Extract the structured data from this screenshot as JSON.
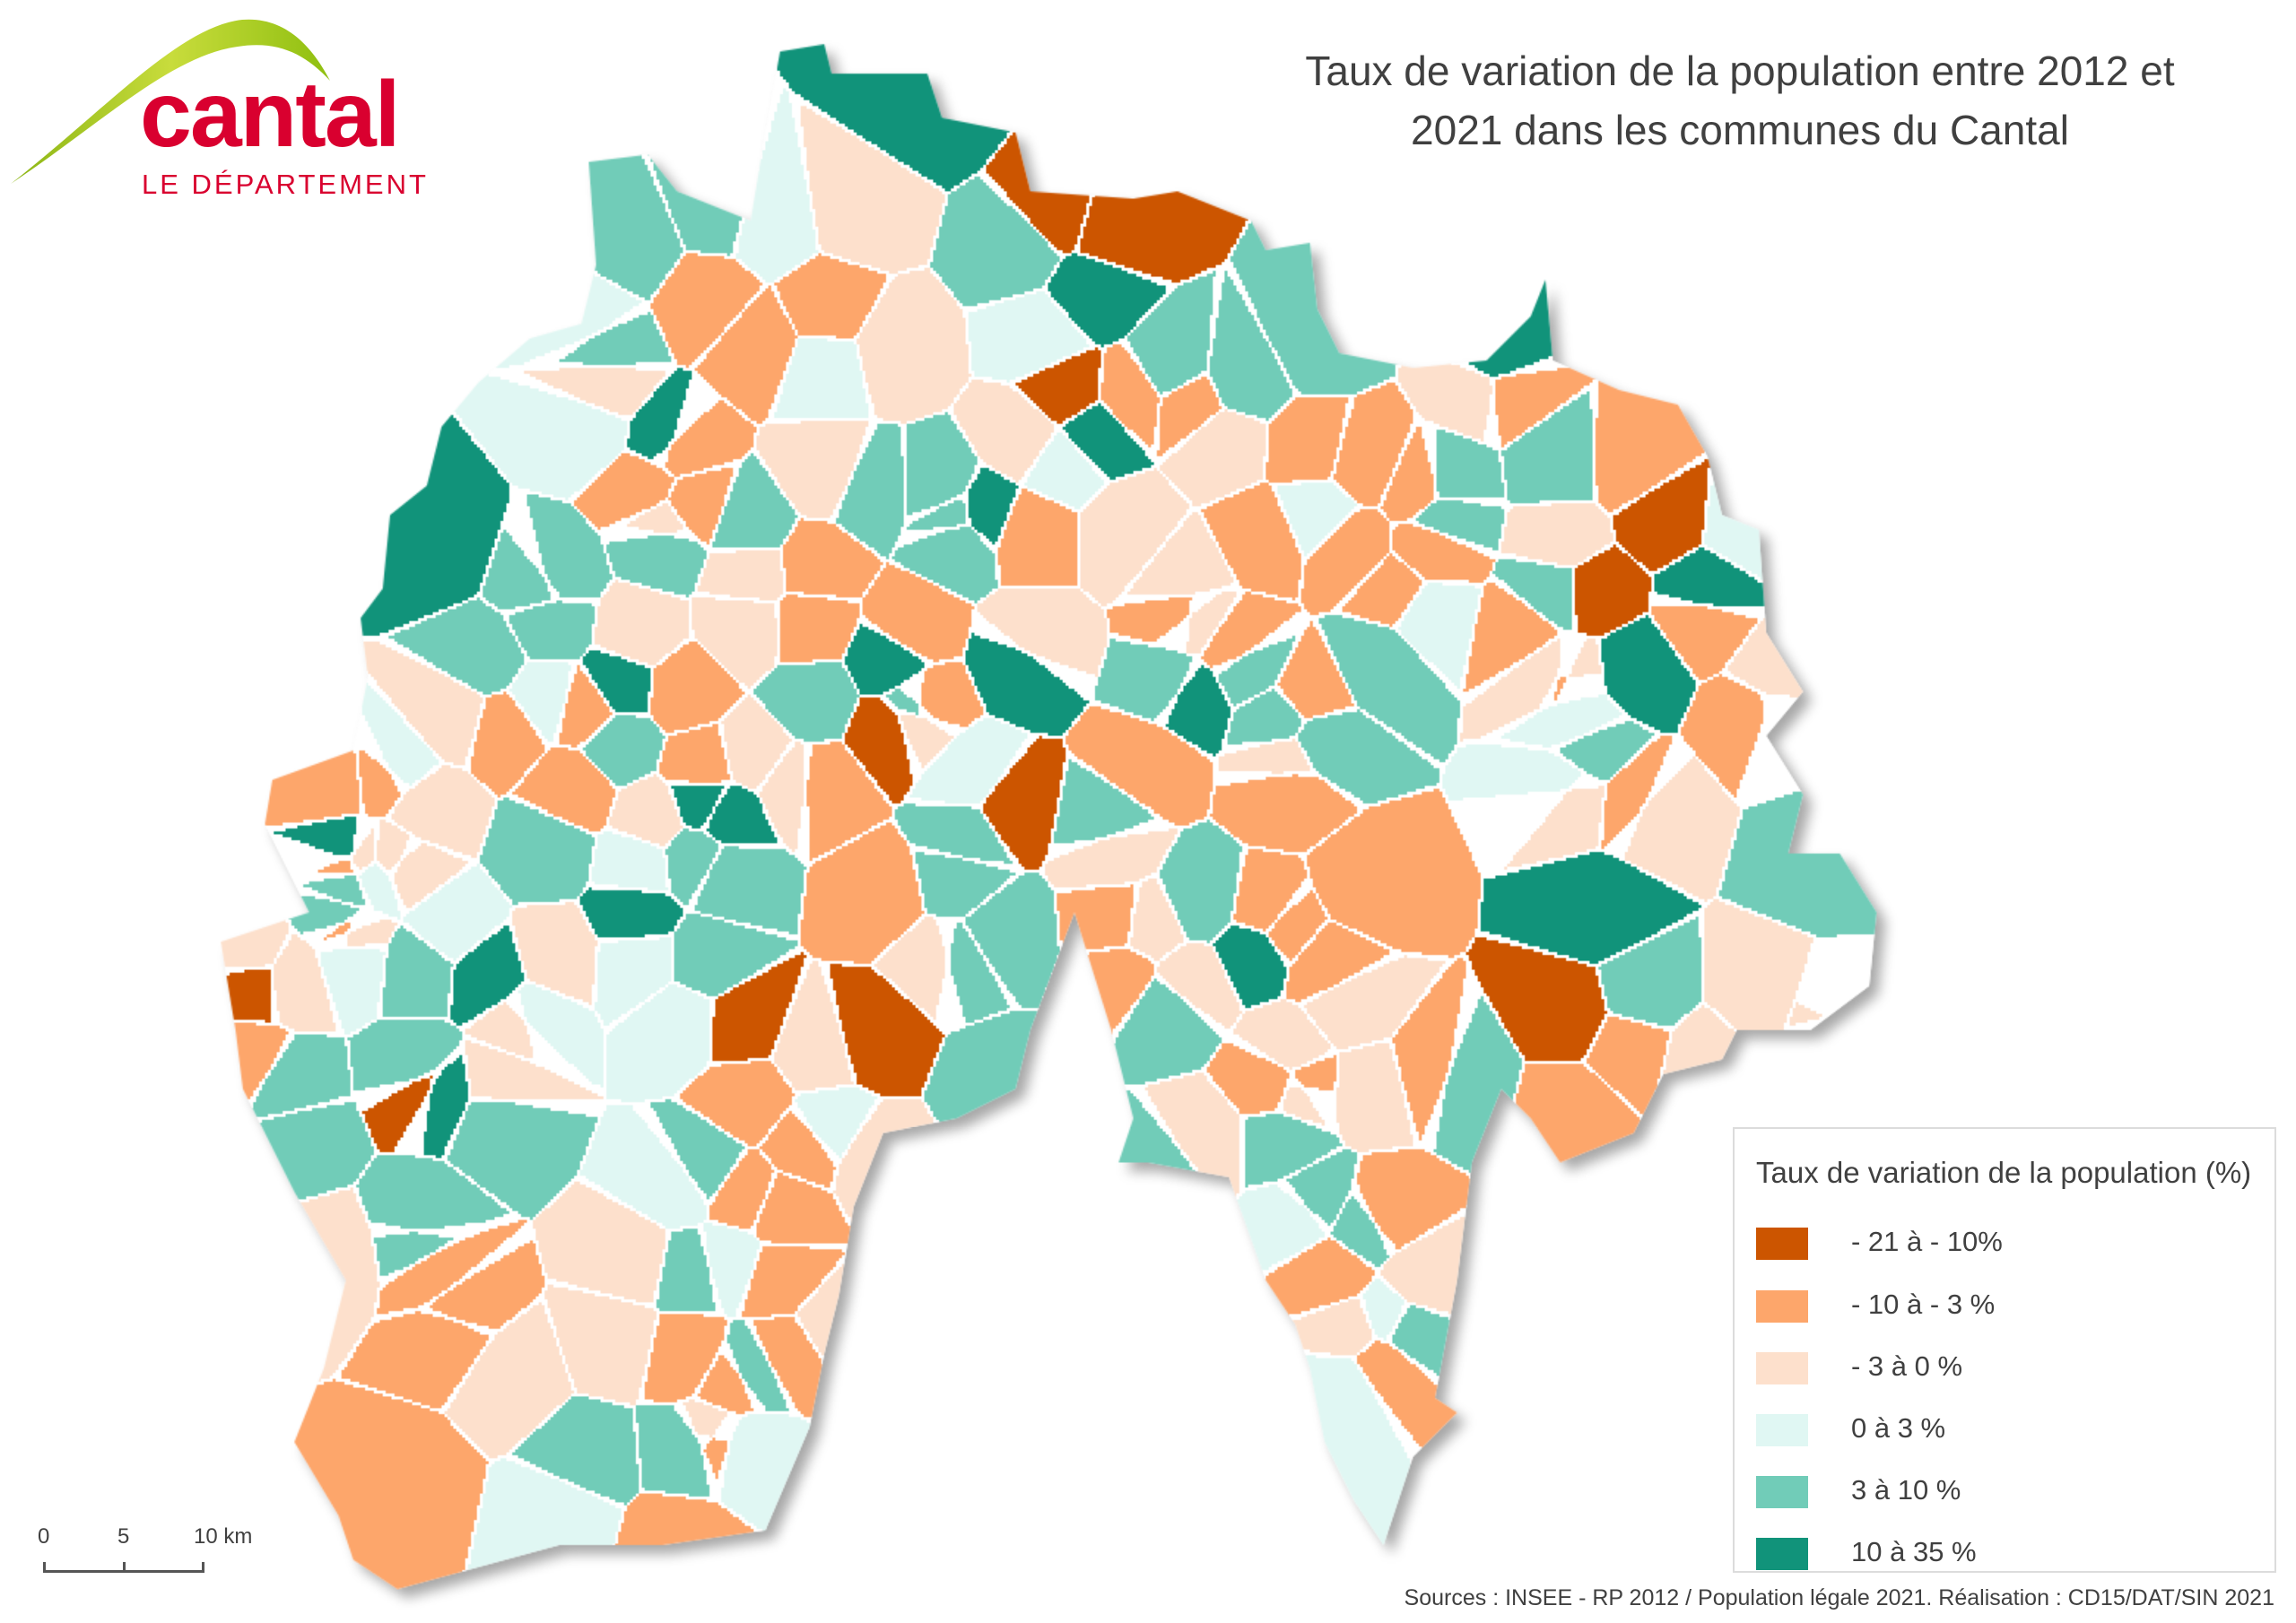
{
  "logo": {
    "name": "cantal",
    "subtitle": "LE DÉPARTEMENT",
    "brand_color": "#d9002f",
    "arc_color": "#a4c614"
  },
  "title": {
    "line1": "Taux de variation de la population entre 2012 et",
    "line2": "2021 dans les communes du Cantal"
  },
  "legend": {
    "title": "Taux de variation de la population (%)",
    "classes": [
      {
        "label": "- 21 à - 10%",
        "color": "#cc5500",
        "weight": 6
      },
      {
        "label": "- 10 à - 3 %",
        "color": "#fda66b",
        "weight": 25
      },
      {
        "label": "- 3 à 0 %",
        "color": "#fde0cc",
        "weight": 20
      },
      {
        "label": "0 à 3 %",
        "color": "#e0f7f3",
        "weight": 15
      },
      {
        "label": "3 à 10 %",
        "color": "#71ccb8",
        "weight": 25
      },
      {
        "label": "10 à 35 %",
        "color": "#11937a",
        "weight": 9
      }
    ]
  },
  "scale": {
    "tick0": "0",
    "tick1": "5",
    "tick2": "10 km"
  },
  "sources": "Sources : INSEE - RP 2012 / Population légale 2021. Réalisation : CD15/DAT/SIN 2021"
}
